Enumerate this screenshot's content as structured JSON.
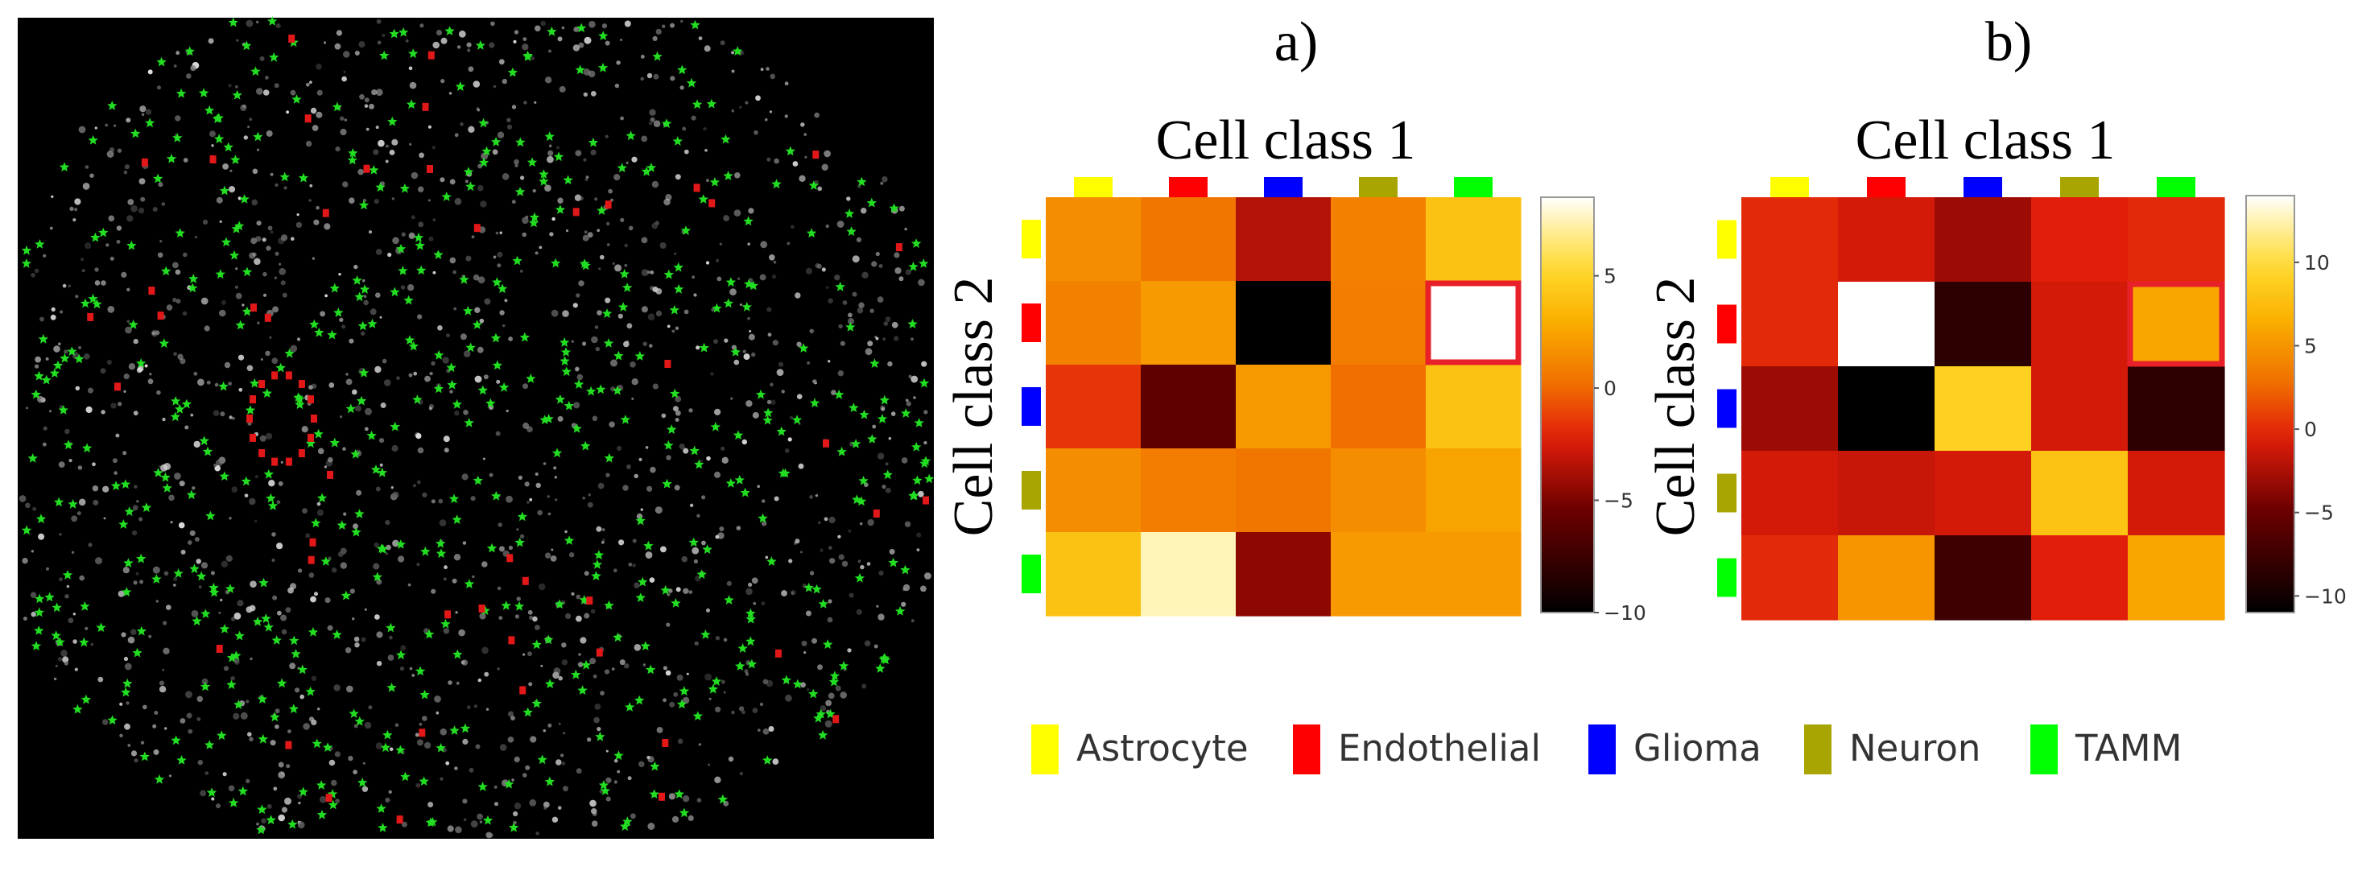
{
  "colors": {
    "Astrocyte": "#ffff00",
    "Endothelial": "#ff0000",
    "Glioma": "#0000ff",
    "Neuron": "#a8a400",
    "TAMM": "#00ff00",
    "micrograph_background": "#000000",
    "highlight_box": "#e8202a",
    "marker_tamm": "#22dd22",
    "marker_endothelial": "#e21818"
  },
  "legend": {
    "items": [
      "Astrocyte",
      "Endothelial",
      "Glioma",
      "Neuron",
      "TAMM"
    ]
  },
  "micrograph": {
    "point_density": {
      "nuclei": 1400,
      "tamm": 520,
      "endothelial": 60
    }
  },
  "chart_data": [
    {
      "type": "heatmap",
      "panel_label": "a)",
      "xlabel": "Cell class 1",
      "ylabel": "Cell class 2",
      "x_categories": [
        "Astrocyte",
        "Endothelial",
        "Glioma",
        "Neuron",
        "TAMM"
      ],
      "y_categories": [
        "Astrocyte",
        "Endothelial",
        "Glioma",
        "Neuron",
        "TAMM"
      ],
      "z": [
        [
          1.5,
          0.5,
          -3.5,
          1.0,
          4.0
        ],
        [
          1.0,
          2.0,
          -10.0,
          0.8,
          8.5
        ],
        [
          -1.5,
          -6.0,
          2.0,
          0.2,
          4.0
        ],
        [
          1.5,
          0.8,
          0.5,
          1.5,
          2.5
        ],
        [
          4.0,
          7.5,
          -4.5,
          2.0,
          2.0
        ]
      ],
      "zrange": [
        -10,
        8.5
      ],
      "colorbar_ticks": [
        5,
        0,
        -5,
        -10
      ],
      "colorbar_tick_labels": [
        "5",
        "0",
        "−5",
        "−10"
      ],
      "highlight_cell": {
        "row": "Endothelial",
        "col": "TAMM"
      }
    },
    {
      "type": "heatmap",
      "panel_label": "b)",
      "xlabel": "Cell class 1",
      "ylabel": "Cell class 2",
      "x_categories": [
        "Astrocyte",
        "Endothelial",
        "Glioma",
        "Neuron",
        "TAMM"
      ],
      "y_categories": [
        "Astrocyte",
        "Endothelial",
        "Glioma",
        "Neuron",
        "TAMM"
      ],
      "z": [
        [
          0,
          -1,
          -3,
          -0.5,
          0
        ],
        [
          0,
          14,
          -8.5,
          -1,
          6
        ],
        [
          -3,
          -11,
          9,
          -1,
          -8.5
        ],
        [
          -1,
          -1.5,
          -1,
          8,
          -1
        ],
        [
          0,
          5,
          -7.5,
          -0.5,
          6
        ]
      ],
      "zrange": [
        -11,
        14
      ],
      "colorbar_ticks": [
        10,
        5,
        0,
        -5,
        -10
      ],
      "colorbar_tick_labels": [
        "10",
        "5",
        "0",
        "−5",
        "−10"
      ],
      "highlight_cell": {
        "row": "Endothelial",
        "col": "TAMM"
      }
    }
  ]
}
